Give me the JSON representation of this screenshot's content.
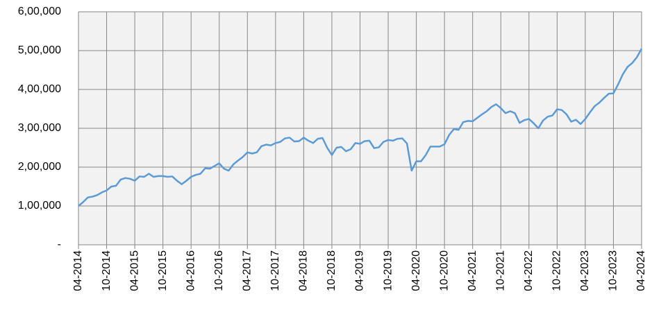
{
  "chart_data": {
    "type": "line",
    "categories": [
      "04-2014",
      null,
      null,
      null,
      null,
      null,
      "10-2014",
      null,
      null,
      null,
      null,
      null,
      "04-2015",
      null,
      null,
      null,
      null,
      null,
      "10-2015",
      null,
      null,
      null,
      null,
      null,
      "04-2016",
      null,
      null,
      null,
      null,
      null,
      "10-2016",
      null,
      null,
      null,
      null,
      null,
      "04-2017",
      null,
      null,
      null,
      null,
      null,
      "10-2017",
      null,
      null,
      null,
      null,
      null,
      "04-2018",
      null,
      null,
      null,
      null,
      null,
      "10-2018",
      null,
      null,
      null,
      null,
      null,
      "04-2019",
      null,
      null,
      null,
      null,
      null,
      "10-2019",
      null,
      null,
      null,
      null,
      null,
      "04-2020",
      null,
      null,
      null,
      null,
      null,
      "10-2020",
      null,
      null,
      null,
      null,
      null,
      "04-2021",
      null,
      null,
      null,
      null,
      null,
      "10-2021",
      null,
      null,
      null,
      null,
      null,
      "04-2022",
      null,
      null,
      null,
      null,
      null,
      "10-2022",
      null,
      null,
      null,
      null,
      null,
      "04-2023",
      null,
      null,
      null,
      null,
      null,
      "10-2023",
      null,
      null,
      null,
      null,
      null,
      "04-2024"
    ],
    "series": [
      {
        "color": "#5b9bd5",
        "values": [
          100000,
          110000,
          122000,
          124000,
          128000,
          135000,
          140000,
          150000,
          152000,
          168000,
          172000,
          170000,
          165000,
          176000,
          175000,
          183000,
          175000,
          177000,
          177000,
          175000,
          176000,
          165000,
          156000,
          165000,
          175000,
          180000,
          183000,
          197000,
          196000,
          203000,
          210000,
          196000,
          191000,
          207000,
          217000,
          226000,
          238000,
          235000,
          238000,
          254000,
          258000,
          256000,
          262000,
          265000,
          274000,
          276000,
          266000,
          267000,
          276000,
          268000,
          262000,
          273000,
          275000,
          250000,
          231000,
          250000,
          252000,
          241000,
          246000,
          262000,
          260000,
          267000,
          268000,
          249000,
          251000,
          265000,
          270000,
          268000,
          273000,
          274000,
          261000,
          191000,
          215000,
          215000,
          231000,
          253000,
          253000,
          253000,
          259000,
          283000,
          298000,
          296000,
          316000,
          319000,
          318000,
          327000,
          336000,
          344000,
          355000,
          362000,
          352000,
          339000,
          344000,
          339000,
          314000,
          321000,
          324000,
          313000,
          300000,
          320000,
          330000,
          333000,
          349000,
          347000,
          336000,
          317000,
          322000,
          311000,
          324000,
          341000,
          357000,
          366000,
          378000,
          389000,
          390000,
          413000,
          439000,
          458000,
          468000,
          483000,
          505000
        ]
      }
    ],
    "ylim": [
      0,
      600000
    ],
    "yticks": [
      {
        "value": 0,
        "label": "-"
      },
      {
        "value": 100000,
        "label": "1,00,000"
      },
      {
        "value": 200000,
        "label": "2,00,000"
      },
      {
        "value": 300000,
        "label": "3,00,000"
      },
      {
        "value": 400000,
        "label": "4,00,000"
      },
      {
        "value": 500000,
        "label": "5,00,000"
      },
      {
        "value": 600000,
        "label": "6,00,000"
      }
    ],
    "grid": true
  }
}
